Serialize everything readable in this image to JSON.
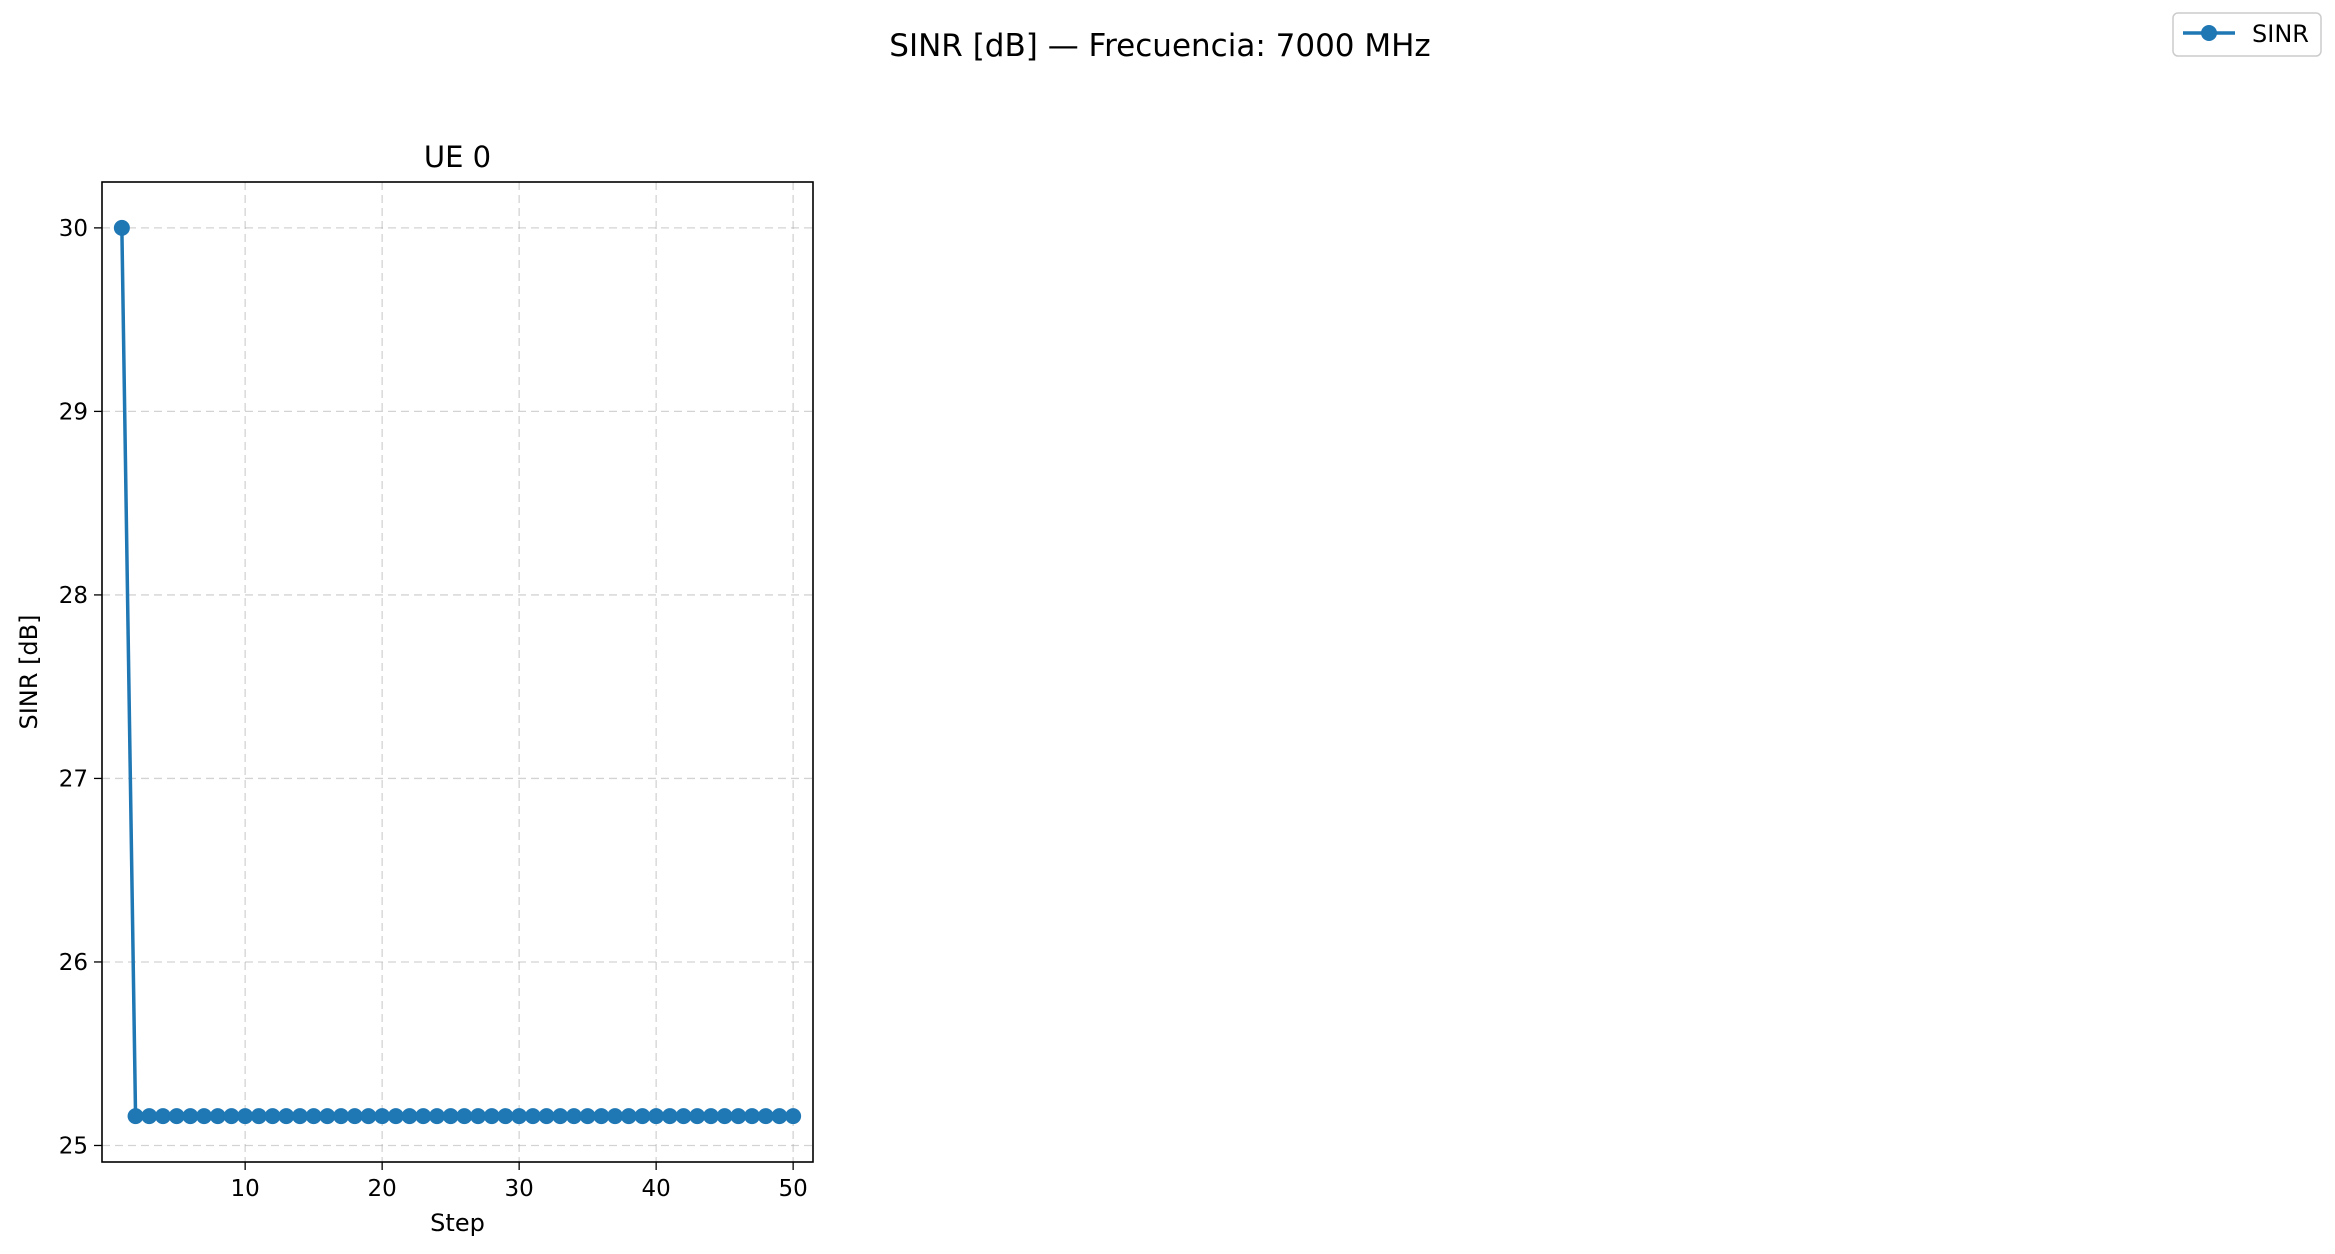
{
  "figure": {
    "title": "SINR [dB] — Frecuencia: 7000 MHz"
  },
  "legend": {
    "placement": "top-right",
    "entries": [
      {
        "label": "SINR",
        "color": "#1f77b4"
      }
    ]
  },
  "chart_data": {
    "type": "line",
    "title": "UE 0",
    "xlabel": "Step",
    "ylabel": "SINR [dB]",
    "xlim": [
      -0.45,
      51.45
    ],
    "ylim": [
      24.91,
      30.25
    ],
    "xticks": [
      10,
      20,
      30,
      40,
      50
    ],
    "yticks": [
      25,
      26,
      27,
      28,
      29,
      30
    ],
    "grid": true,
    "marker": "circle",
    "series": [
      {
        "name": "SINR",
        "color": "#1f77b4",
        "x": [
          1,
          2,
          3,
          4,
          5,
          6,
          7,
          8,
          9,
          10,
          11,
          12,
          13,
          14,
          15,
          16,
          17,
          18,
          19,
          20,
          21,
          22,
          23,
          24,
          25,
          26,
          27,
          28,
          29,
          30,
          31,
          32,
          33,
          34,
          35,
          36,
          37,
          38,
          39,
          40,
          41,
          42,
          43,
          44,
          45,
          46,
          47,
          48,
          49,
          50
        ],
        "y": [
          30.0,
          25.16,
          25.16,
          25.16,
          25.16,
          25.16,
          25.16,
          25.16,
          25.16,
          25.16,
          25.16,
          25.16,
          25.16,
          25.16,
          25.16,
          25.16,
          25.16,
          25.16,
          25.16,
          25.16,
          25.16,
          25.16,
          25.16,
          25.16,
          25.16,
          25.16,
          25.16,
          25.16,
          25.16,
          25.16,
          25.16,
          25.16,
          25.16,
          25.16,
          25.16,
          25.16,
          25.16,
          25.16,
          25.16,
          25.16,
          25.16,
          25.16,
          25.16,
          25.16,
          25.16,
          25.16,
          25.16,
          25.16,
          25.16,
          25.16
        ]
      }
    ]
  }
}
